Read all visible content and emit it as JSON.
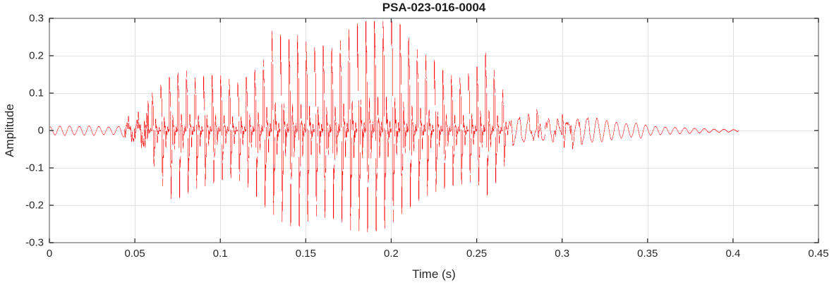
{
  "chart_data": {
    "type": "line",
    "title": "PSA-023-016-0004",
    "xlabel": "Time (s)",
    "ylabel": "Amplitude",
    "xlim": [
      0,
      0.45
    ],
    "ylim": [
      -0.3,
      0.3
    ],
    "x_ticks": [
      0,
      0.05,
      0.1,
      0.15,
      0.2,
      0.25,
      0.3,
      0.35,
      0.4,
      0.45
    ],
    "x_tick_labels": [
      "0",
      "0.05",
      "0.1",
      "0.15",
      "0.2",
      "0.25",
      "0.3",
      "0.35",
      "0.4",
      "0.45"
    ],
    "y_ticks": [
      -0.3,
      -0.2,
      -0.1,
      0,
      0.1,
      0.2,
      0.3
    ],
    "y_tick_labels": [
      "-0.3",
      "-0.2",
      "-0.1",
      "0",
      "0.1",
      "0.2",
      "0.3"
    ],
    "grid": true,
    "legend": "none",
    "line_color": "#FF0000",
    "grid_color": "#E2E2E2",
    "axis_color": "#8A8A8A",
    "tick_color": "#262626",
    "text_color": "#262626",
    "signal": {
      "description": "speech-like waveform; min/max amplitude envelope sampled every 5 ms",
      "t_step": 0.005,
      "t_end": 0.403,
      "f0_hz": 200,
      "ripple_hz": 175,
      "onset_noise_band": [
        0.044,
        0.058
      ],
      "envelope_pos": [
        0.01,
        0.012,
        0.013,
        0.011,
        0.012,
        0.013,
        0.011,
        0.01,
        0.011,
        0.02,
        0.022,
        0.035,
        0.095,
        0.11,
        0.125,
        0.135,
        0.145,
        0.135,
        0.15,
        0.165,
        0.175,
        0.17,
        0.155,
        0.165,
        0.175,
        0.19,
        0.26,
        0.245,
        0.235,
        0.255,
        0.25,
        0.245,
        0.258,
        0.248,
        0.262,
        0.277,
        0.272,
        0.266,
        0.272,
        0.262,
        0.276,
        0.252,
        0.232,
        0.216,
        0.212,
        0.202,
        0.172,
        0.152,
        0.138,
        0.142,
        0.155,
        0.192,
        0.155,
        0.112,
        0.052,
        0.042,
        0.048,
        0.075,
        0.052,
        0.048,
        0.072,
        0.056,
        0.046,
        0.04,
        0.034,
        0.028,
        0.024,
        0.02,
        0.017,
        0.022,
        0.013,
        0.011,
        0.01,
        0.009,
        0.008,
        0.007,
        0.006,
        0.005,
        0.004,
        0.004,
        0.003,
        0.002
      ],
      "envelope_neg": [
        0.01,
        0.012,
        0.013,
        0.011,
        0.012,
        0.013,
        0.011,
        0.01,
        0.011,
        0.016,
        0.018,
        0.03,
        0.08,
        0.125,
        0.16,
        0.16,
        0.155,
        0.15,
        0.155,
        0.16,
        0.16,
        0.155,
        0.16,
        0.17,
        0.185,
        0.205,
        0.215,
        0.23,
        0.245,
        0.258,
        0.26,
        0.252,
        0.265,
        0.268,
        0.262,
        0.274,
        0.255,
        0.242,
        0.23,
        0.222,
        0.212,
        0.2,
        0.195,
        0.19,
        0.186,
        0.178,
        0.168,
        0.152,
        0.142,
        0.13,
        0.125,
        0.165,
        0.142,
        0.112,
        0.052,
        0.04,
        0.042,
        0.056,
        0.046,
        0.042,
        0.05,
        0.046,
        0.04,
        0.035,
        0.03,
        0.026,
        0.022,
        0.018,
        0.015,
        0.013,
        0.01,
        0.009,
        0.008,
        0.007,
        0.007,
        0.006,
        0.005,
        0.005,
        0.004,
        0.003,
        0.003,
        0.002
      ]
    }
  }
}
